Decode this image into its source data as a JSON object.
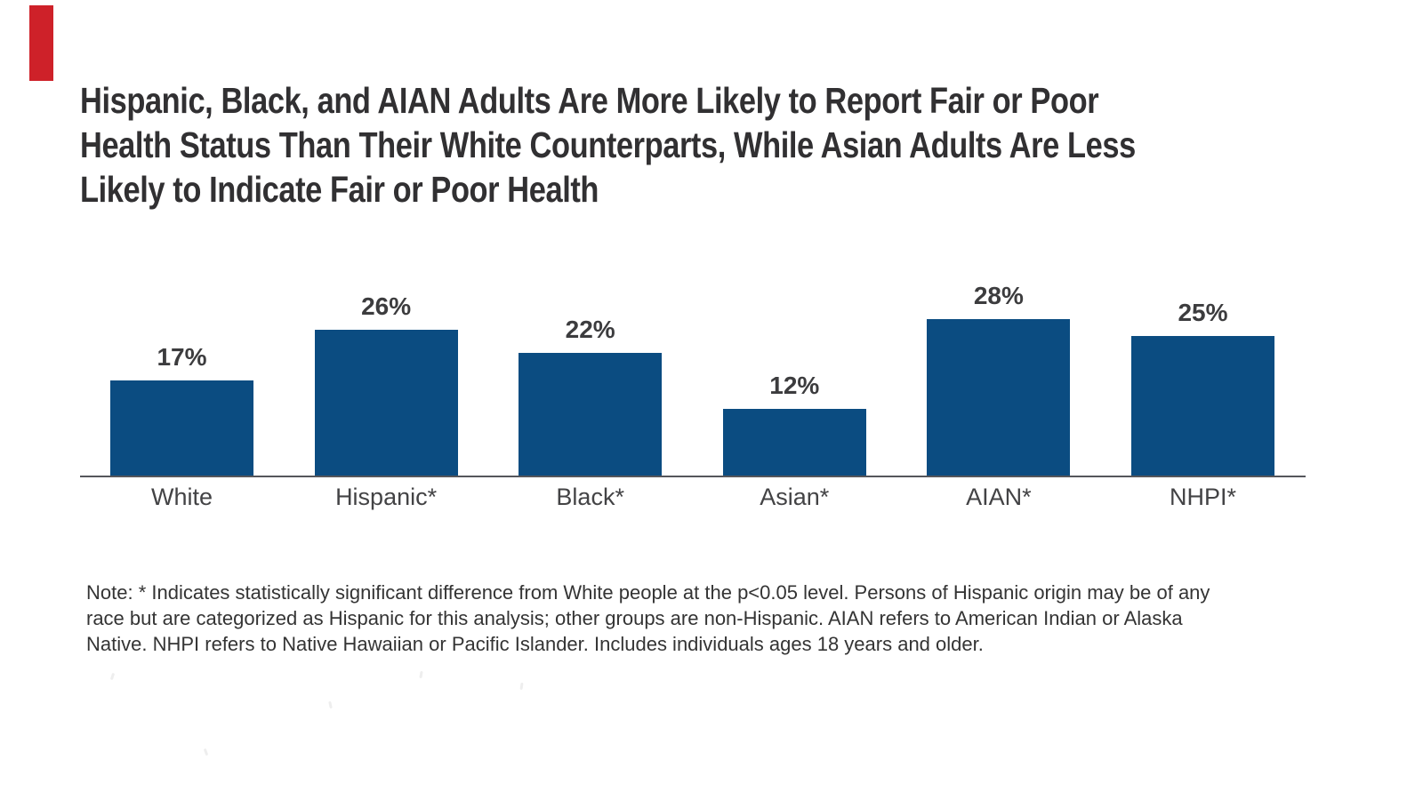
{
  "page": {
    "background_color": "#ffffff",
    "brand_bar_color": "#CE2129"
  },
  "title": {
    "text": "Hispanic, Black, and AIAN Adults Are More Likely to Report Fair or Poor\nHealth Status Than Their White Counterparts, While Asian Adults Are Less\nLikely to Indicate Fair or Poor Health",
    "color": "#313032"
  },
  "chart_data": {
    "type": "bar",
    "title": "Hispanic, Black, and AIAN Adults Are More Likely to Report Fair or Poor Health Status Than Their White Counterparts, While Asian Adults Are Less Likely to Indicate Fair or Poor Health",
    "categories": [
      "White",
      "Hispanic*",
      "Black*",
      "Asian*",
      "AIAN*",
      "NHPI*"
    ],
    "values": [
      17,
      26,
      22,
      12,
      28,
      25
    ],
    "value_labels": [
      "17%",
      "26%",
      "22%",
      "12%",
      "28%",
      "25%"
    ],
    "xlabel": "",
    "ylabel": "",
    "ylim": [
      0,
      30
    ],
    "grid": false,
    "legend_position": "none",
    "bar_color": "#0B4C81",
    "axis_line_color": "#55565B",
    "label_color": "#3C3C3E"
  },
  "note": {
    "text": "Note: * Indicates statistically significant difference from White people at the p<0.05 level. Persons of Hispanic origin may be of any\nrace but are categorized as Hispanic for this analysis; other groups are non-Hispanic. AIAN refers to American Indian or Alaska\nNative. NHPI refers to Native Hawaiian or Pacific Islander. Includes individuals ages 18 years and older.",
    "color": "#343434"
  }
}
